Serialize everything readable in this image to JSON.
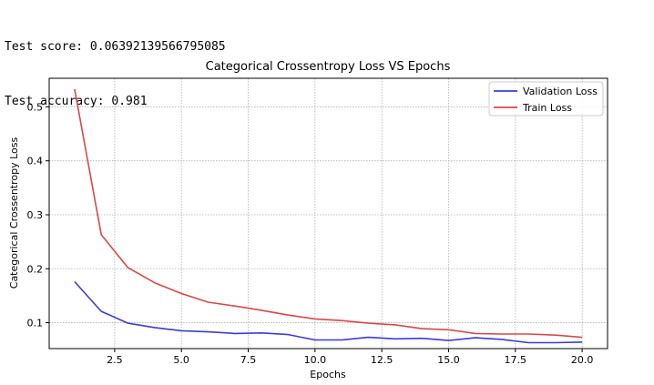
{
  "console": {
    "score_line": "Test score: 0.06392139566795085",
    "accuracy_line": "Test accuracy: 0.981"
  },
  "chart_data": {
    "type": "line",
    "title": "Categorical Crossentropy Loss VS Epochs",
    "xlabel": "Epochs",
    "ylabel": "Categorical Crossentropy Loss",
    "xlim": [
      0.05,
      20.95
    ],
    "ylim": [
      0.052,
      0.553
    ],
    "xticks": [
      2.5,
      5.0,
      7.5,
      10.0,
      12.5,
      15.0,
      17.5,
      20.0
    ],
    "yticks": [
      0.1,
      0.2,
      0.3,
      0.4,
      0.5
    ],
    "grid": true,
    "legend_position": "top-right",
    "x": [
      1,
      2,
      3,
      4,
      5,
      6,
      7,
      8,
      9,
      10,
      11,
      12,
      13,
      14,
      15,
      16,
      17,
      18,
      19,
      20
    ],
    "series": [
      {
        "name": "Validation Loss",
        "color": "#3b3bd9",
        "values": [
          0.176,
          0.121,
          0.099,
          0.091,
          0.085,
          0.083,
          0.08,
          0.081,
          0.078,
          0.068,
          0.068,
          0.073,
          0.07,
          0.071,
          0.067,
          0.072,
          0.069,
          0.063,
          0.063,
          0.064
        ]
      },
      {
        "name": "Train Loss",
        "color": "#d94848",
        "values": [
          0.533,
          0.263,
          0.202,
          0.174,
          0.154,
          0.138,
          0.131,
          0.123,
          0.114,
          0.107,
          0.104,
          0.099,
          0.096,
          0.089,
          0.087,
          0.08,
          0.079,
          0.079,
          0.077,
          0.073
        ]
      }
    ]
  }
}
